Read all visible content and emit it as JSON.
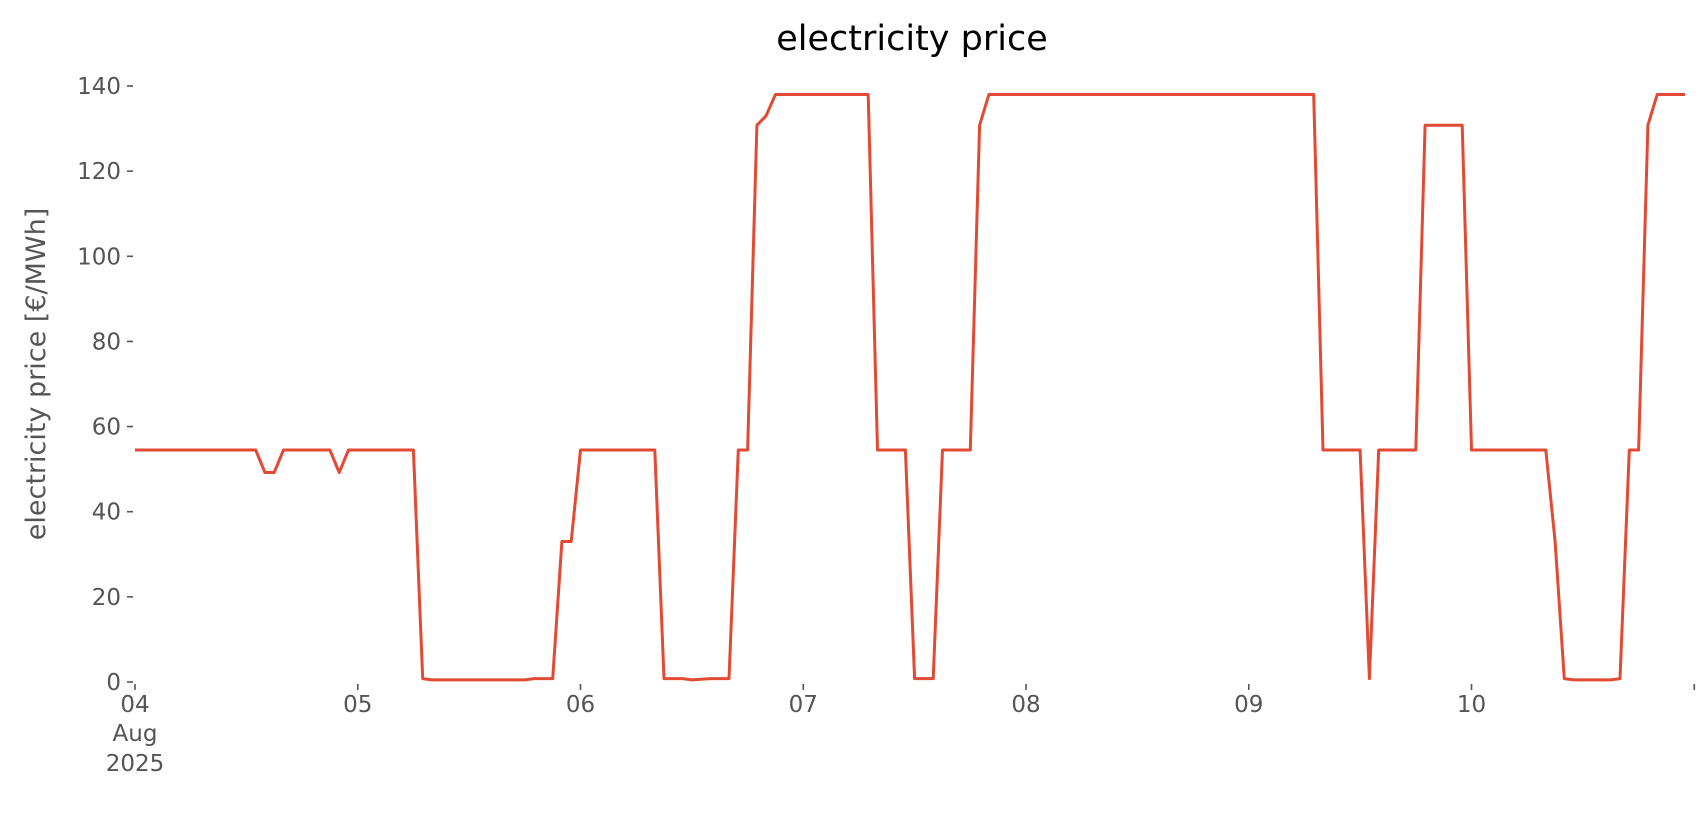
{
  "chart_data": {
    "type": "line",
    "title": "electricity price",
    "xlabel": "",
    "ylabel": "electricity price [€/MWh]",
    "ylim": [
      0,
      140
    ],
    "yticks": [
      0,
      20,
      40,
      60,
      80,
      100,
      120,
      140
    ],
    "xlim": [
      "2025-08-04 00:00",
      "2025-08-10 23:00"
    ],
    "xticks": [
      {
        "x": "2025-08-04 00:00",
        "label": "04",
        "sublabels": [
          "Aug",
          "2025"
        ]
      },
      {
        "x": "2025-08-05 00:00",
        "label": "05"
      },
      {
        "x": "2025-08-06 00:00",
        "label": "06"
      },
      {
        "x": "2025-08-07 00:00",
        "label": "07"
      },
      {
        "x": "2025-08-08 00:00",
        "label": "08"
      },
      {
        "x": "2025-08-09 00:00",
        "label": "09"
      },
      {
        "x": "2025-08-10 00:00",
        "label": "10"
      },
      {
        "x": "2025-08-11 00:00",
        "label": ""
      }
    ],
    "grid": false,
    "colors": {
      "line": "#e24a33",
      "text": "#555555",
      "title": "#000000"
    },
    "series": [
      {
        "points": [
          [
            "2025-08-04 00:00",
            54.5
          ],
          [
            "2025-08-04 13:00",
            54.5
          ],
          [
            "2025-08-04 14:00",
            49.2
          ],
          [
            "2025-08-04 15:00",
            49.2
          ],
          [
            "2025-08-04 16:00",
            54.5
          ],
          [
            "2025-08-04 21:00",
            54.5
          ],
          [
            "2025-08-04 22:00",
            49.2
          ],
          [
            "2025-08-04 23:00",
            54.5
          ],
          [
            "2025-08-05 06:00",
            54.5
          ],
          [
            "2025-08-05 07:00",
            0.8
          ],
          [
            "2025-08-05 08:00",
            0.5
          ],
          [
            "2025-08-05 18:00",
            0.5
          ],
          [
            "2025-08-05 19:00",
            0.8
          ],
          [
            "2025-08-05 21:00",
            0.8
          ],
          [
            "2025-08-05 22:00",
            33.0
          ],
          [
            "2025-08-05 23:00",
            33.0
          ],
          [
            "2025-08-06 00:00",
            54.5
          ],
          [
            "2025-08-06 08:00",
            54.5
          ],
          [
            "2025-08-06 09:00",
            0.8
          ],
          [
            "2025-08-06 11:00",
            0.8
          ],
          [
            "2025-08-06 12:00",
            0.5
          ],
          [
            "2025-08-06 14:00",
            0.8
          ],
          [
            "2025-08-06 16:00",
            0.8
          ],
          [
            "2025-08-06 17:00",
            54.5
          ],
          [
            "2025-08-06 18:00",
            54.5
          ],
          [
            "2025-08-06 19:00",
            130.8
          ],
          [
            "2025-08-06 20:00",
            133.0
          ],
          [
            "2025-08-06 21:00",
            138.0
          ],
          [
            "2025-08-07 07:00",
            138.0
          ],
          [
            "2025-08-07 08:00",
            54.5
          ],
          [
            "2025-08-07 11:00",
            54.5
          ],
          [
            "2025-08-07 12:00",
            0.8
          ],
          [
            "2025-08-07 14:00",
            0.8
          ],
          [
            "2025-08-07 15:00",
            54.5
          ],
          [
            "2025-08-07 18:00",
            54.5
          ],
          [
            "2025-08-07 19:00",
            130.8
          ],
          [
            "2025-08-07 20:00",
            138.0
          ],
          [
            "2025-08-09 07:00",
            138.0
          ],
          [
            "2025-08-09 08:00",
            54.5
          ],
          [
            "2025-08-09 12:00",
            54.5
          ],
          [
            "2025-08-09 13:00",
            0.8
          ],
          [
            "2025-08-09 14:00",
            54.5
          ],
          [
            "2025-08-09 18:00",
            54.5
          ],
          [
            "2025-08-09 19:00",
            130.8
          ],
          [
            "2025-08-09 23:00",
            130.8
          ],
          [
            "2025-08-10 00:00",
            54.5
          ],
          [
            "2025-08-10 08:00",
            54.5
          ],
          [
            "2025-08-10 09:00",
            33.0
          ],
          [
            "2025-08-10 10:00",
            0.8
          ],
          [
            "2025-08-10 11:00",
            0.5
          ],
          [
            "2025-08-10 15:00",
            0.5
          ],
          [
            "2025-08-10 16:00",
            0.8
          ],
          [
            "2025-08-10 17:00",
            54.5
          ],
          [
            "2025-08-10 18:00",
            54.5
          ],
          [
            "2025-08-10 19:00",
            130.8
          ],
          [
            "2025-08-10 20:00",
            138.0
          ],
          [
            "2025-08-10 23:00",
            138.0
          ]
        ]
      }
    ]
  }
}
